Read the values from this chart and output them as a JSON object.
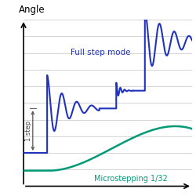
{
  "title": "Angle",
  "full_step_label": "Full step mode",
  "micro_label": "Microstepping 1/32",
  "step_label": "1 step",
  "full_step_color": "#2233bb",
  "micro_color": "#009977",
  "bg_color": "#ffffff",
  "grid_color": "#cccccc",
  "xlim": [
    0,
    10
  ],
  "ylim": [
    -1.5,
    6.0
  ]
}
